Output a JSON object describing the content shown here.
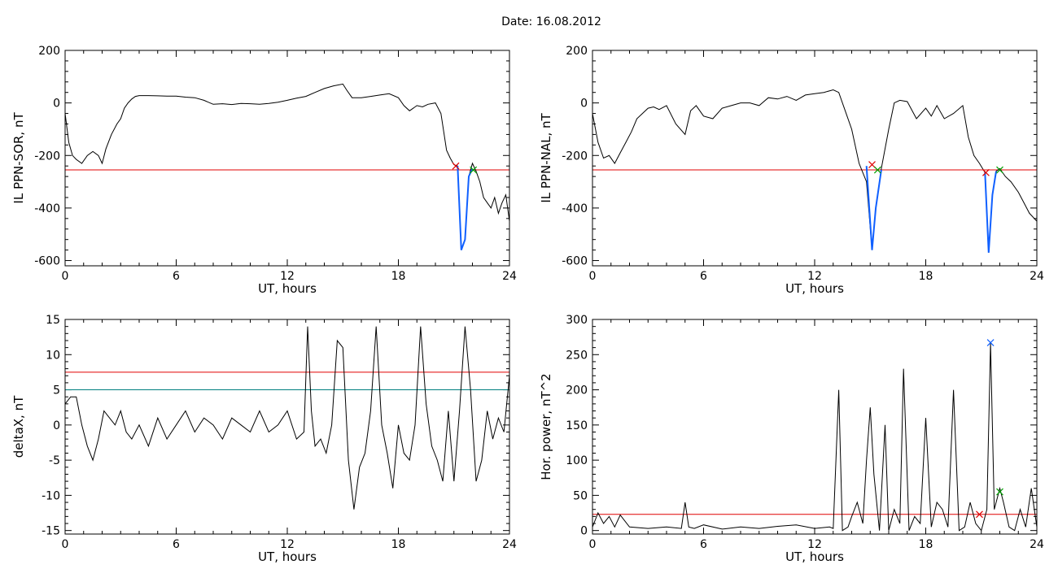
{
  "page": {
    "title": "Date:  16.08.2012"
  },
  "colors": {
    "trace": "#000000",
    "threshold": "#e00000",
    "threshold2": "#008080",
    "interval": "#1060ff",
    "start_marker": "#e00000",
    "end_marker": "#00a000",
    "peak_marker": "#1060ff"
  },
  "chart_data": [
    {
      "id": "ppn-sor",
      "type": "line",
      "title": "",
      "xlabel": "UT, hours",
      "ylabel": "IL PPN-SOR, nT",
      "xlim": [
        0,
        24
      ],
      "ylim": [
        -620,
        200
      ],
      "xticks": [
        0,
        6,
        12,
        18,
        24
      ],
      "yticks": [
        200,
        0,
        -200,
        -400,
        -600
      ],
      "thresholds": [
        {
          "y": -255,
          "color": "#e00000"
        }
      ],
      "series": [
        {
          "x": [
            0,
            0.2,
            0.4,
            0.6,
            0.9,
            1.2,
            1.5,
            1.8,
            2.0,
            2.2,
            2.5,
            2.8,
            3.0,
            3.2,
            3.4,
            3.6,
            3.8,
            4.0,
            4.5,
            5,
            5.5,
            6,
            6.5,
            7,
            7.5,
            8,
            8.5,
            9,
            9.5,
            10,
            10.5,
            11,
            11.5,
            12,
            12.5,
            13,
            13.5,
            14,
            14.5,
            15,
            15.2,
            15.5,
            16,
            16.5,
            17,
            17.5,
            18,
            18.3,
            18.6,
            19,
            19.3,
            19.6,
            20,
            20.3,
            20.6,
            20.8,
            21.0,
            21.2,
            21.4,
            21.6,
            21.8,
            22.0,
            22.2,
            22.4,
            22.6,
            22.8,
            23.0,
            23.2,
            23.4,
            23.6,
            23.8,
            24.0
          ],
          "y": [
            -40,
            -150,
            -200,
            -215,
            -230,
            -200,
            -185,
            -200,
            -230,
            -175,
            -120,
            -80,
            -60,
            -20,
            0,
            15,
            25,
            28,
            28,
            27,
            26,
            26,
            22,
            20,
            10,
            -5,
            -3,
            -6,
            -2,
            -3,
            -5,
            -2,
            3,
            10,
            18,
            25,
            40,
            55,
            65,
            72,
            50,
            20,
            20,
            25,
            30,
            35,
            20,
            -10,
            -30,
            -10,
            -15,
            -5,
            0,
            -40,
            -180,
            -210,
            -235,
            -240,
            -560,
            -520,
            -280,
            -230,
            -260,
            -300,
            -360,
            -380,
            -400,
            -360,
            -420,
            -380,
            -350,
            -450
          ],
          "color": "#000000"
        }
      ],
      "intervals": [
        {
          "x": [
            21.2,
            21.4,
            21.6,
            21.8,
            22.0
          ],
          "y": [
            -240,
            -560,
            -520,
            -280,
            -250
          ]
        }
      ],
      "markers": [
        {
          "x": 21.1,
          "y": -240,
          "color": "#e00000"
        },
        {
          "x": 22.05,
          "y": -255,
          "color": "#00a000"
        }
      ]
    },
    {
      "id": "ppn-nal",
      "type": "line",
      "title": "",
      "xlabel": "UT, hours",
      "ylabel": "IL PPN-NAL, nT",
      "xlim": [
        0,
        24
      ],
      "ylim": [
        -620,
        200
      ],
      "xticks": [
        0,
        6,
        12,
        18,
        24
      ],
      "yticks": [
        200,
        0,
        -200,
        -400,
        -600
      ],
      "thresholds": [
        {
          "y": -255,
          "color": "#e00000"
        }
      ],
      "series": [
        {
          "x": [
            0,
            0.3,
            0.6,
            0.9,
            1.2,
            1.5,
            1.8,
            2.1,
            2.4,
            2.7,
            3.0,
            3.3,
            3.6,
            4.0,
            4.5,
            5.0,
            5.3,
            5.6,
            6.0,
            6.5,
            7.0,
            7.5,
            8.0,
            8.5,
            9.0,
            9.5,
            10,
            10.5,
            11,
            11.5,
            12,
            12.5,
            13,
            13.3,
            13.6,
            14.0,
            14.4,
            14.8,
            15.1,
            15.3,
            15.6,
            16.0,
            16.3,
            16.6,
            17,
            17.5,
            18,
            18.3,
            18.6,
            19,
            19.5,
            20,
            20.3,
            20.6,
            20.9,
            21.2,
            21.4,
            21.6,
            21.8,
            22.0,
            22.3,
            22.6,
            23.0,
            23.3,
            23.6,
            24.0
          ],
          "y": [
            -40,
            -150,
            -210,
            -200,
            -230,
            -190,
            -150,
            -110,
            -60,
            -40,
            -20,
            -15,
            -25,
            -10,
            -80,
            -120,
            -30,
            -10,
            -50,
            -60,
            -20,
            -10,
            0,
            0,
            -10,
            20,
            15,
            25,
            10,
            30,
            35,
            40,
            50,
            40,
            -20,
            -100,
            -230,
            -300,
            -560,
            -400,
            -250,
            -100,
            0,
            10,
            5,
            -60,
            -20,
            -50,
            -10,
            -60,
            -40,
            -10,
            -130,
            -200,
            -230,
            -265,
            -570,
            -350,
            -260,
            -250,
            -280,
            -300,
            -340,
            -380,
            -420,
            -450
          ],
          "color": "#000000"
        }
      ],
      "intervals": [
        {
          "x": [
            14.8,
            15.1,
            15.3,
            15.6
          ],
          "y": [
            -240,
            -560,
            -400,
            -255
          ]
        },
        {
          "x": [
            21.2,
            21.4,
            21.6,
            21.8
          ],
          "y": [
            -265,
            -570,
            -350,
            -260
          ]
        }
      ],
      "markers": [
        {
          "x": 15.1,
          "y": -235,
          "color": "#e00000"
        },
        {
          "x": 15.4,
          "y": -255,
          "color": "#00a000"
        },
        {
          "x": 21.25,
          "y": -265,
          "color": "#e00000"
        },
        {
          "x": 22.0,
          "y": -255,
          "color": "#00a000"
        }
      ]
    },
    {
      "id": "deltax",
      "type": "line",
      "title": "",
      "xlabel": "UT, hours",
      "ylabel": "deltaX, nT",
      "xlim": [
        0,
        24
      ],
      "ylim": [
        -15.5,
        15
      ],
      "xticks": [
        0,
        6,
        12,
        18,
        24
      ],
      "yticks": [
        15,
        10,
        5,
        0,
        -5,
        -10,
        -15
      ],
      "thresholds": [
        {
          "y": 7.5,
          "color": "#e00000"
        },
        {
          "y": 5,
          "color": "#008080"
        }
      ],
      "series": [
        {
          "x": [
            0,
            0.3,
            0.6,
            0.9,
            1.2,
            1.5,
            1.8,
            2.1,
            2.4,
            2.7,
            3.0,
            3.3,
            3.6,
            4.0,
            4.5,
            5.0,
            5.5,
            6.0,
            6.5,
            7.0,
            7.5,
            8.0,
            8.5,
            9.0,
            9.5,
            10,
            10.5,
            11,
            11.5,
            12,
            12.5,
            12.9,
            13.1,
            13.3,
            13.5,
            13.8,
            14.1,
            14.4,
            14.7,
            15.0,
            15.3,
            15.6,
            15.9,
            16.2,
            16.5,
            16.8,
            17.1,
            17.4,
            17.7,
            18.0,
            18.3,
            18.6,
            18.9,
            19.2,
            19.5,
            19.8,
            20.1,
            20.4,
            20.7,
            21.0,
            21.3,
            21.6,
            21.9,
            22.2,
            22.5,
            22.8,
            23.1,
            23.4,
            23.7,
            24.0
          ],
          "y": [
            3,
            4,
            4,
            0,
            -3,
            -5,
            -2,
            2,
            1,
            0,
            2,
            -1,
            -2,
            0,
            -3,
            1,
            -2,
            0,
            2,
            -1,
            1,
            0,
            -2,
            1,
            0,
            -1,
            2,
            -1,
            0,
            2,
            -2,
            -1,
            14,
            2,
            -3,
            -2,
            -4,
            0,
            12,
            11,
            -5,
            -12,
            -6,
            -4,
            2,
            14,
            0,
            -4,
            -9,
            0,
            -4,
            -5,
            0,
            14,
            3,
            -3,
            -5,
            -8,
            2,
            -8,
            2,
            14,
            5,
            -8,
            -5,
            2,
            -2,
            1,
            -1,
            7
          ],
          "color": "#000000"
        }
      ]
    },
    {
      "id": "hor-power",
      "type": "line",
      "title": "",
      "xlabel": "UT, hours",
      "ylabel": "Hor. power, nT^2",
      "xlim": [
        0,
        24
      ],
      "ylim": [
        -5,
        300
      ],
      "xticks": [
        0,
        6,
        12,
        18,
        24
      ],
      "yticks": [
        300,
        250,
        200,
        150,
        100,
        50,
        0
      ],
      "thresholds": [
        {
          "y": 23,
          "color": "#e00000"
        }
      ],
      "series": [
        {
          "x": [
            0,
            0.3,
            0.6,
            0.9,
            1.2,
            1.5,
            2,
            3,
            4,
            4.8,
            5.0,
            5.2,
            5.5,
            6,
            7,
            8,
            9,
            10,
            11,
            12,
            12.8,
            13.0,
            13.3,
            13.5,
            13.8,
            14.0,
            14.3,
            14.6,
            14.8,
            15.0,
            15.2,
            15.5,
            15.8,
            16.0,
            16.3,
            16.6,
            16.8,
            17.1,
            17.4,
            17.7,
            18.0,
            18.3,
            18.6,
            18.9,
            19.2,
            19.5,
            19.8,
            20.1,
            20.4,
            20.7,
            21.0,
            21.3,
            21.5,
            21.7,
            22.0,
            22.2,
            22.5,
            22.8,
            23.1,
            23.4,
            23.7,
            24.0
          ],
          "y": [
            5,
            25,
            10,
            20,
            5,
            22,
            5,
            3,
            5,
            3,
            40,
            5,
            3,
            8,
            2,
            5,
            3,
            6,
            8,
            3,
            5,
            3,
            200,
            0,
            5,
            20,
            40,
            10,
            100,
            175,
            80,
            0,
            150,
            0,
            30,
            10,
            230,
            0,
            20,
            10,
            160,
            5,
            40,
            30,
            5,
            200,
            0,
            5,
            40,
            10,
            0,
            30,
            267,
            30,
            60,
            40,
            5,
            0,
            30,
            5,
            60,
            5
          ],
          "color": "#000000"
        }
      ],
      "markers": [
        {
          "x": 20.9,
          "y": 23,
          "color": "#e00000"
        },
        {
          "x": 21.5,
          "y": 267,
          "color": "#1060ff"
        },
        {
          "x": 22.0,
          "y": 55,
          "color": "#00a000"
        }
      ]
    }
  ]
}
